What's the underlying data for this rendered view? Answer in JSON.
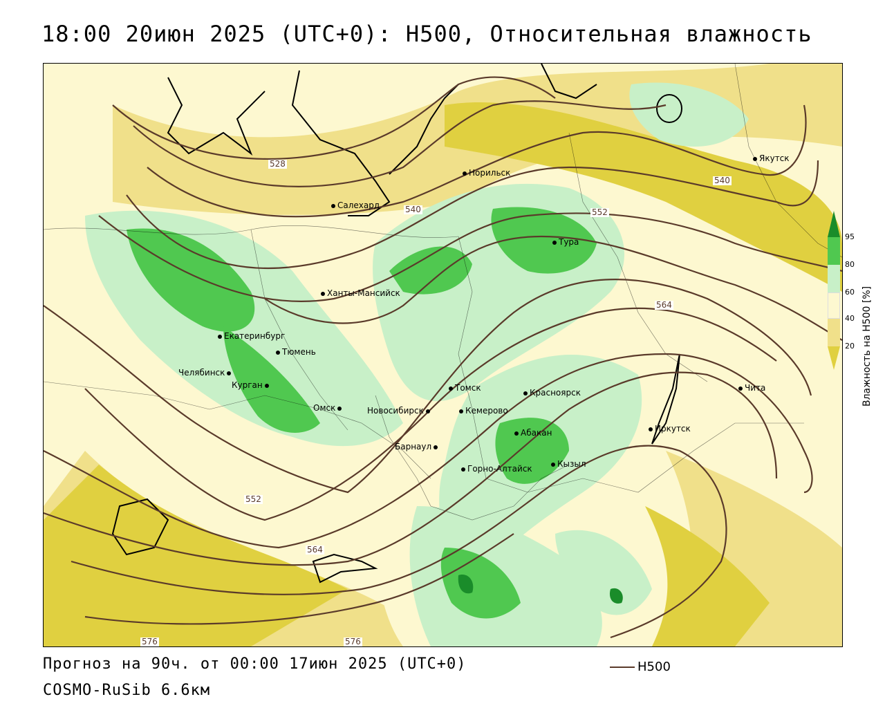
{
  "title": "18:00 20июн 2025 (UTC+0): H500, Относительная влажность",
  "footer": {
    "forecast": "Прогноз на 90ч. от 00:00 17июн 2025 (UTC+0)",
    "model": "COSMO-RuSib 6.6км",
    "contour_key": "H500"
  },
  "legend": {
    "title": "Влажность на Н500 [%]",
    "ticks": [
      "95",
      "80",
      "60",
      "40",
      "20"
    ],
    "colors": {
      "lt20": "#e0d040",
      "20_40": "#f0e08a",
      "40_60": "#fdf8d0",
      "60_80": "#c8f0c8",
      "80_95": "#50c850",
      "gt95": "#1a8c2a"
    }
  },
  "cities": [
    {
      "name": "Норильск"
    },
    {
      "name": "Салехард"
    },
    {
      "name": "Якутск"
    },
    {
      "name": "Тура"
    },
    {
      "name": "Ханты-Мансийск"
    },
    {
      "name": "Екатеринбург"
    },
    {
      "name": "Тюмень"
    },
    {
      "name": "Челябинск"
    },
    {
      "name": "Курган"
    },
    {
      "name": "Омск"
    },
    {
      "name": "Новосибирск"
    },
    {
      "name": "Томск"
    },
    {
      "name": "Кемерово"
    },
    {
      "name": "Красноярск"
    },
    {
      "name": "Барнаул"
    },
    {
      "name": "Абакан"
    },
    {
      "name": "Горно-Алтайск"
    },
    {
      "name": "Кызыл"
    },
    {
      "name": "Иркутск"
    },
    {
      "name": "Чита"
    }
  ],
  "contour_labels": [
    "528",
    "540",
    "540",
    "552",
    "564",
    "552",
    "564",
    "576",
    "576"
  ],
  "contour_color": "#5a3a2a"
}
